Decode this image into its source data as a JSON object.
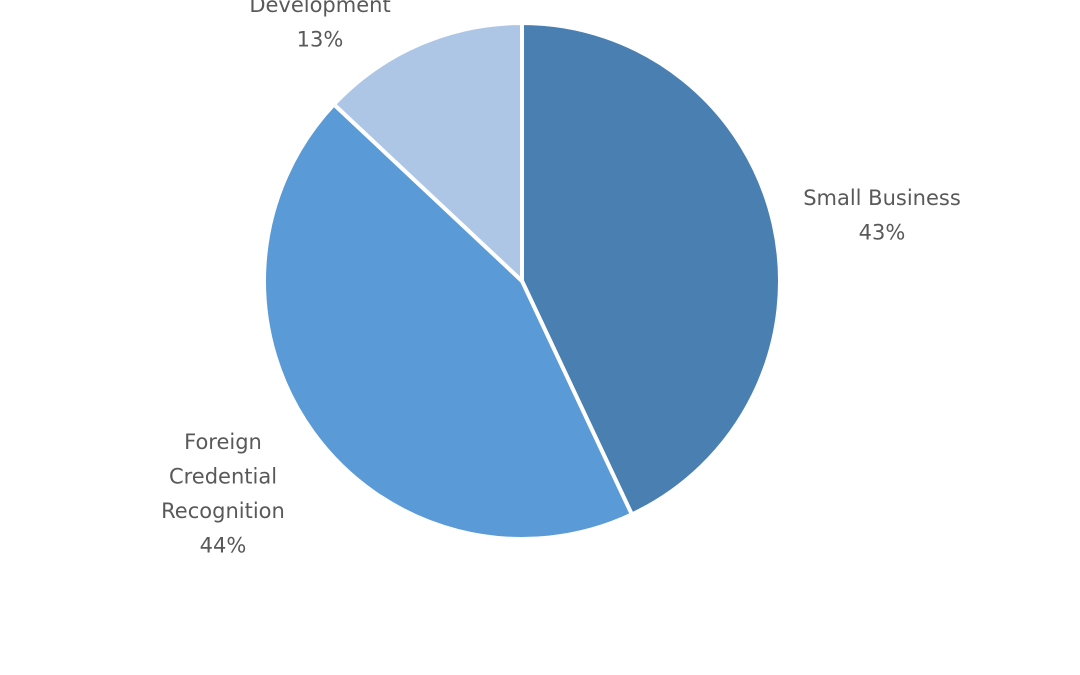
{
  "chart_data": {
    "type": "pie",
    "title": "",
    "legend": "none",
    "slices": [
      {
        "label_lines": [
          "Small Business"
        ],
        "percent_label": "43%",
        "value": 43,
        "color": "#4a7fb1"
      },
      {
        "label_lines": [
          "Foreign",
          "Credential",
          "Recognition"
        ],
        "percent_label": "44%",
        "value": 44,
        "color": "#5a9ad6"
      },
      {
        "label_lines": [
          "Development"
        ],
        "percent_label": "13%",
        "value": 13,
        "color": "#aec6e6"
      }
    ]
  }
}
